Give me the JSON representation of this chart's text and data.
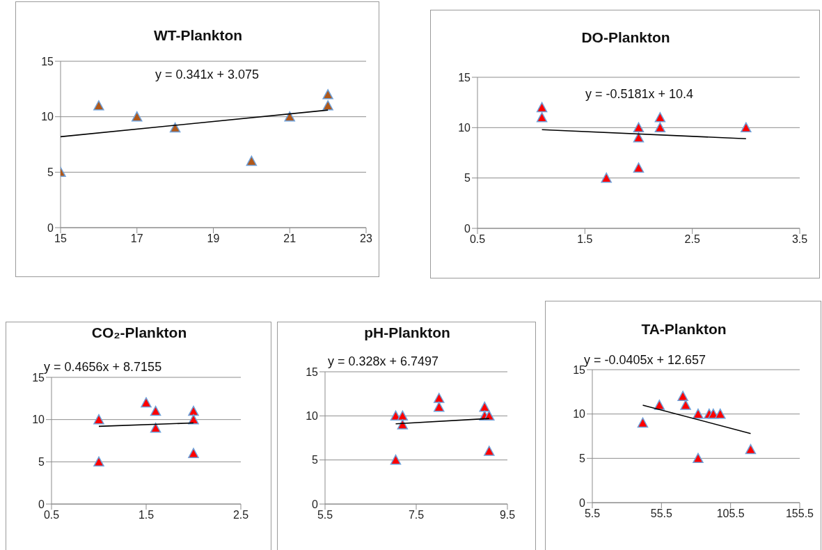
{
  "chart_data": [
    {
      "type": "scatter",
      "title": "WT-Plankton",
      "xlim": [
        15,
        23
      ],
      "xticks": [
        15,
        17,
        19,
        21,
        23
      ],
      "ylim": [
        0,
        15
      ],
      "yticks": [
        0,
        5,
        10,
        15
      ],
      "grid": "y",
      "annotations": [
        "y = 0.341x + 3.075"
      ],
      "series": [
        {
          "type": "scatter",
          "marker": "triangle",
          "color": "#b0581a",
          "x": [
            15,
            16,
            17,
            18,
            20,
            21,
            22,
            22
          ],
          "values": [
            5,
            11,
            10,
            9,
            6,
            10,
            12,
            11
          ]
        },
        {
          "type": "line",
          "marker": "none",
          "color": "#000000",
          "x": [
            15,
            22
          ],
          "values": [
            8.2,
            10.6
          ]
        }
      ]
    },
    {
      "type": "scatter",
      "title": "DO-Plankton",
      "xlim": [
        0.5,
        3.5
      ],
      "xticks": [
        0.5,
        1.5,
        2.5,
        3.5
      ],
      "ylim": [
        0,
        15
      ],
      "yticks": [
        0,
        5,
        10,
        15
      ],
      "grid": "y",
      "annotations": [
        "y = -0.5181x + 10.4"
      ],
      "series": [
        {
          "type": "scatter",
          "marker": "triangle",
          "color": "#ff0000",
          "x": [
            1.1,
            1.1,
            1.7,
            2.0,
            2.0,
            2.0,
            2.2,
            2.2,
            3.0
          ],
          "values": [
            12,
            11,
            5,
            10,
            9,
            6,
            11,
            10,
            10
          ]
        },
        {
          "type": "line",
          "marker": "none",
          "color": "#000000",
          "x": [
            1.1,
            3.0
          ],
          "values": [
            9.8,
            8.9
          ]
        }
      ]
    },
    {
      "type": "scatter",
      "title": "CO₂-Plankton",
      "xlim": [
        0.5,
        2.5
      ],
      "xticks": [
        0.5,
        1.5,
        2.5
      ],
      "ylim": [
        0,
        15
      ],
      "yticks": [
        0,
        5,
        10,
        15
      ],
      "grid": "y",
      "annotations": [
        "y = 0.4656x + 8.7155"
      ],
      "series": [
        {
          "type": "scatter",
          "marker": "triangle",
          "color": "#ff0000",
          "x": [
            1.0,
            1.0,
            1.5,
            1.6,
            1.6,
            2.0,
            2.0,
            2.0
          ],
          "values": [
            10,
            5,
            12,
            11,
            9,
            11,
            10,
            6
          ]
        },
        {
          "type": "line",
          "marker": "none",
          "color": "#000000",
          "x": [
            1.0,
            2.0
          ],
          "values": [
            9.2,
            9.6
          ]
        }
      ]
    },
    {
      "type": "scatter",
      "title": "pH-Plankton",
      "xlim": [
        5.5,
        9.5
      ],
      "xticks": [
        5.5,
        7.5,
        9.5
      ],
      "ylim": [
        0,
        15
      ],
      "yticks": [
        0,
        5,
        10,
        15
      ],
      "grid": "y",
      "annotations": [
        "y = 0.328x + 6.7497"
      ],
      "series": [
        {
          "type": "scatter",
          "marker": "triangle",
          "color": "#ff0000",
          "x": [
            7.05,
            7.05,
            7.2,
            7.2,
            8.0,
            8.0,
            9.0,
            9.0,
            9.1,
            9.1
          ],
          "values": [
            10,
            5,
            10,
            9,
            12,
            11,
            11,
            10,
            10,
            6
          ]
        },
        {
          "type": "line",
          "marker": "none",
          "color": "#000000",
          "x": [
            7.05,
            9.1
          ],
          "values": [
            9.1,
            9.7
          ]
        }
      ]
    },
    {
      "type": "scatter",
      "title": "TA-Plankton",
      "xlim": [
        5.5,
        155.5
      ],
      "xticks": [
        5.5,
        55.5,
        105.5,
        155.5
      ],
      "ylim": [
        0,
        15
      ],
      "yticks": [
        0,
        5,
        10,
        15
      ],
      "grid": "y",
      "annotations": [
        "y = -0.0405x + 12.657"
      ],
      "series": [
        {
          "type": "scatter",
          "marker": "triangle",
          "color": "#ff0000",
          "x": [
            42,
            54,
            71,
            73,
            82,
            82,
            90,
            93,
            98,
            120
          ],
          "values": [
            9,
            11,
            12,
            11,
            10,
            5,
            10,
            10,
            10,
            6
          ]
        },
        {
          "type": "line",
          "marker": "none",
          "color": "#000000",
          "x": [
            42,
            120
          ],
          "values": [
            11.0,
            7.8
          ]
        }
      ]
    }
  ]
}
